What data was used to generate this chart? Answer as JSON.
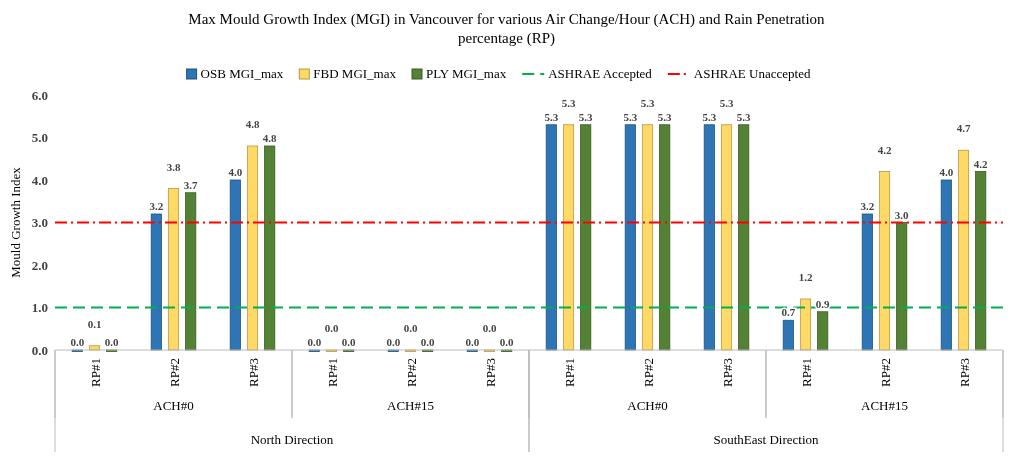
{
  "chart_data": {
    "type": "bar",
    "title": "Max Mould Growth Index (MGI) in Vancouver for various Air Change/Hour (ACH) and Rain Penetration percentage (RP)",
    "ylabel": "Mould Growth Index",
    "categories": [
      "RP#1",
      "RP#2",
      "RP#3",
      "RP#1",
      "RP#2",
      "RP#3",
      "RP#1",
      "RP#2",
      "RP#3",
      "RP#1",
      "RP#2",
      "RP#3"
    ],
    "annotations": [
      "ACH#0",
      "ACH#15",
      "ACH#0",
      "ACH#15",
      "North Direction",
      "SouthEast Direction"
    ],
    "series": [
      {
        "name": "OSB MGI_max",
        "color": "#2e75b6",
        "values": [
          0.0,
          3.2,
          4.0,
          0.0,
          0.0,
          0.0,
          5.3,
          5.3,
          5.3,
          0.7,
          3.2,
          4.0
        ],
        "value_labels": [
          "0.0",
          "3.2",
          "4.0",
          "0.0",
          "0.0",
          "0.0",
          "5.3",
          "5.3",
          "5.3",
          "0.7",
          "3.2",
          "4.0"
        ]
      },
      {
        "name": "FBD MGI_max",
        "color": "#ffd966",
        "values": [
          0.1,
          3.8,
          4.8,
          0.0,
          0.0,
          0.0,
          5.3,
          5.3,
          5.3,
          1.2,
          4.2,
          4.7
        ],
        "value_labels": [
          "0.1",
          "3.8",
          "4.8",
          "0.0",
          "0.0",
          "0.0",
          "5.3",
          "5.3",
          "5.3",
          "1.2",
          "4.2",
          "4.7"
        ]
      },
      {
        "name": "PLY MGI_max",
        "color": "#548235",
        "values": [
          0.0,
          3.7,
          4.8,
          0.0,
          0.0,
          0.0,
          5.3,
          5.3,
          5.3,
          0.9,
          3.0,
          4.2
        ],
        "value_labels": [
          "0.0",
          "3.7",
          "4.8",
          "0.0",
          "0.0",
          "0.0",
          "5.3",
          "5.3",
          "5.3",
          "0.9",
          "3.0",
          "4.2"
        ]
      }
    ],
    "ref_lines": [
      {
        "axis": "y",
        "value": 1,
        "label": "ASHRAE Accepted",
        "color": "#00b050",
        "line_style": "dashed"
      },
      {
        "axis": "y",
        "value": 3,
        "label": "ASHRAE Unaccepted",
        "color": "#ff0000",
        "line_style": "dashdot"
      }
    ],
    "ylim": [
      0,
      6
    ],
    "yticks": [
      {
        "value": 0,
        "label": "0.0"
      },
      {
        "value": 1,
        "label": "1.0"
      },
      {
        "value": 2,
        "label": "2.0"
      },
      {
        "value": 3,
        "label": "3.0"
      },
      {
        "value": 4,
        "label": "4.0"
      },
      {
        "value": 5,
        "label": "5.0"
      },
      {
        "value": 6,
        "label": "6.0"
      }
    ],
    "legend": "top"
  }
}
